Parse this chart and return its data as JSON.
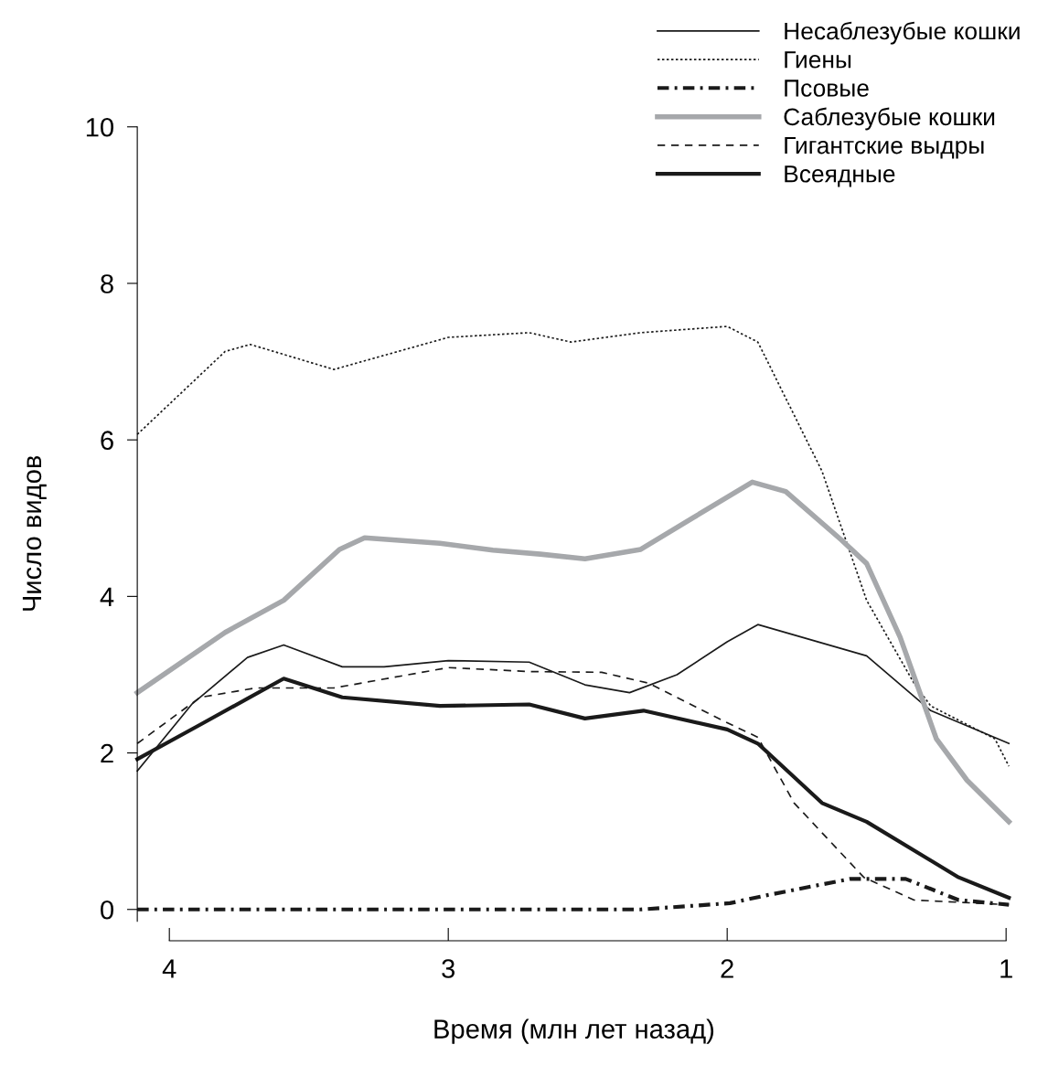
{
  "chart_data": {
    "type": "line",
    "xlabel": "Время (млн лет назад)",
    "ylabel": "Число видов",
    "xlim": [
      4.115,
      0.985
    ],
    "ylim": [
      -0.4,
      10
    ],
    "xticks": [
      4,
      3,
      2,
      1
    ],
    "yticks": [
      0,
      2,
      4,
      6,
      8,
      10
    ],
    "grid": false,
    "legend": "top right",
    "marker": "none",
    "series": [
      {
        "name": "Несаблезубые кошки",
        "color": "#1a1a1a",
        "line_style": "solid",
        "x": [
          4.115,
          3.92,
          3.72,
          3.59,
          3.38,
          3.23,
          3.0,
          2.71,
          2.51,
          2.35,
          2.18,
          2.0,
          1.89,
          1.5,
          1.27,
          0.99
        ],
        "values": [
          1.77,
          2.62,
          3.22,
          3.38,
          3.1,
          3.1,
          3.18,
          3.16,
          2.87,
          2.77,
          3.0,
          3.42,
          3.64,
          3.24,
          2.54,
          2.12
        ]
      },
      {
        "name": "Гиены",
        "color": "#1a1a1a",
        "line_style": "dotted",
        "x": [
          4.115,
          3.8,
          3.71,
          3.41,
          3.0,
          2.71,
          2.56,
          2.31,
          2.0,
          1.89,
          1.66,
          1.5,
          1.33,
          1.27,
          1.04,
          0.99
        ],
        "values": [
          6.07,
          7.13,
          7.22,
          6.9,
          7.31,
          7.37,
          7.25,
          7.37,
          7.45,
          7.25,
          5.6,
          3.95,
          2.89,
          2.6,
          2.18,
          1.83
        ]
      },
      {
        "name": "Псовые",
        "color": "#1a1a1a",
        "line_style": "dashdot",
        "x": [
          4.115,
          2.31,
          1.99,
          1.86,
          1.56,
          1.36,
          1.17,
          0.99
        ],
        "values": [
          0,
          0,
          0.08,
          0.18,
          0.39,
          0.39,
          0.12,
          0.06
        ]
      },
      {
        "name": "Саблезубые кошки",
        "color": "#a6a8ab",
        "line_style": "solid",
        "x": [
          4.115,
          3.8,
          3.59,
          3.39,
          3.3,
          3.03,
          2.84,
          2.67,
          2.51,
          2.31,
          2.12,
          1.91,
          1.79,
          1.59,
          1.5,
          1.38,
          1.25,
          1.14,
          0.99
        ],
        "values": [
          2.77,
          3.54,
          3.95,
          4.6,
          4.75,
          4.68,
          4.59,
          4.54,
          4.48,
          4.6,
          5.01,
          5.46,
          5.34,
          4.72,
          4.42,
          3.48,
          2.18,
          1.65,
          1.12
        ]
      },
      {
        "name": "Гигантские выдры",
        "color": "#1a1a1a",
        "line_style": "dashed",
        "x": [
          4.115,
          3.89,
          3.69,
          3.41,
          3.0,
          2.71,
          2.45,
          2.28,
          2.02,
          1.89,
          1.76,
          1.51,
          1.33,
          0.99
        ],
        "values": [
          2.12,
          2.71,
          2.83,
          2.83,
          3.09,
          3.04,
          3.03,
          2.89,
          2.42,
          2.2,
          1.36,
          0.41,
          0.12,
          0.06
        ]
      },
      {
        "name": "Всеядные",
        "color": "#1a1a1a",
        "line_style": "solid",
        "x": [
          4.115,
          3.89,
          3.59,
          3.38,
          3.03,
          2.71,
          2.51,
          2.3,
          2.0,
          1.89,
          1.66,
          1.5,
          1.17,
          0.99
        ],
        "values": [
          1.92,
          2.36,
          2.95,
          2.71,
          2.6,
          2.62,
          2.44,
          2.54,
          2.3,
          2.12,
          1.36,
          1.12,
          0.41,
          0.15
        ]
      }
    ]
  }
}
